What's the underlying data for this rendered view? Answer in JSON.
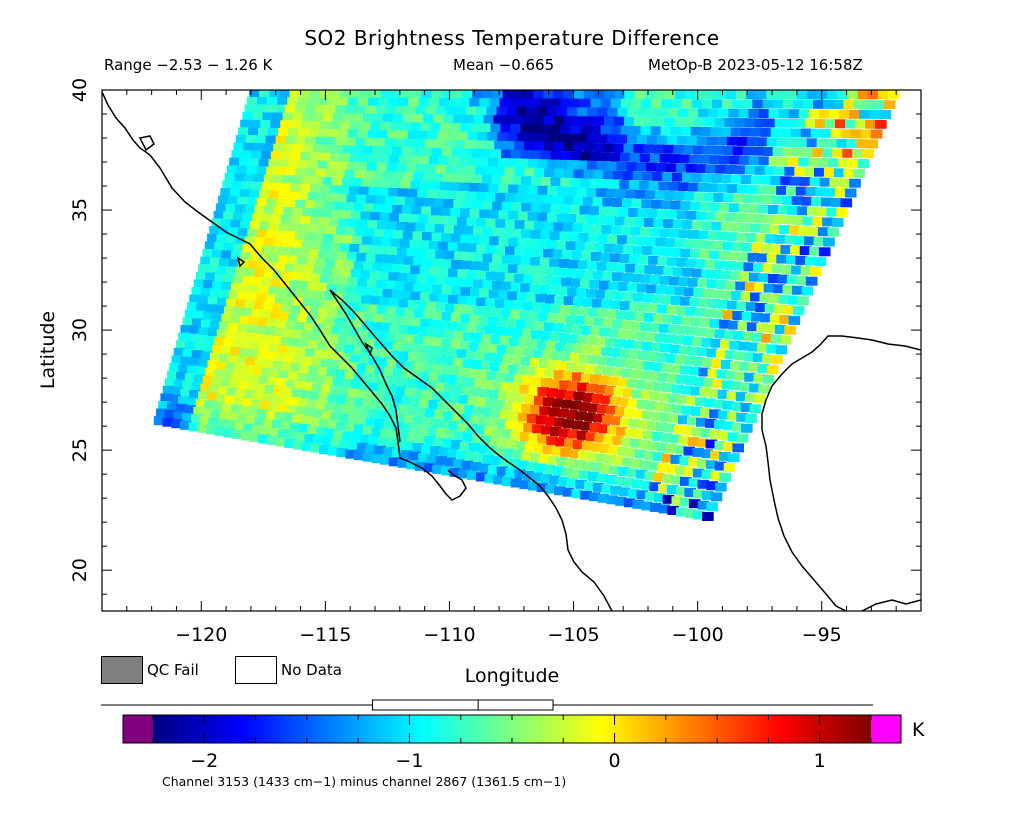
{
  "title": "SO2 Brightness Temperature Difference",
  "info": {
    "range": "Range −2.53 − 1.26 K",
    "mean": "Mean −0.665",
    "satellite_time": "MetOp-B 2023-05-12 16:58Z"
  },
  "map": {
    "projection": "lat-lon",
    "lon_range": [
      -124,
      -91
    ],
    "lat_range": [
      18.3,
      40
    ],
    "x_ticks": [
      -120,
      -115,
      -110,
      -105,
      -100,
      -95
    ],
    "x_tick_labels": [
      "−120",
      "−115",
      "−110",
      "−105",
      "−100",
      "−95"
    ],
    "y_ticks": [
      20,
      25,
      30,
      35,
      40
    ],
    "y_tick_labels": [
      "20",
      "25",
      "30",
      "35",
      "40"
    ],
    "xlabel": "Longitude",
    "ylabel": "Latitude",
    "swath_corners_lonlat": [
      [
        -118.0,
        40.0
      ],
      [
        -91.8,
        40.0
      ],
      [
        -99.5,
        22.0
      ],
      [
        -121.9,
        26.1
      ]
    ],
    "so2_plume_center_lonlat": [
      -105.0,
      26.5
    ],
    "coastline_color": "#000000"
  },
  "legend": {
    "qc_fail": {
      "label": "QC Fail",
      "color": "#7f7f7f"
    },
    "no_data": {
      "label": "No Data",
      "color": "#ffffff"
    }
  },
  "colorbar": {
    "min": -2.25,
    "max": 1.25,
    "ticks": [
      -2,
      -1,
      0,
      1
    ],
    "tick_labels": [
      "−2",
      "−1",
      "0",
      "1"
    ],
    "unit": "K",
    "under_color": "#800080",
    "over_color": "#ff00ff",
    "stops": [
      "#00007f",
      "#0000ff",
      "#007fff",
      "#00ffff",
      "#7fff7f",
      "#ffff00",
      "#ff7f00",
      "#ff0000",
      "#7f0000"
    ],
    "boxplot": {
      "min": -2.53,
      "q1": -1.18,
      "median": -0.665,
      "q3": -0.3,
      "max": 1.26
    }
  },
  "footnote": "Channel 3153 (1433 cm−1) minus channel 2867 (1361.5 cm−1)"
}
